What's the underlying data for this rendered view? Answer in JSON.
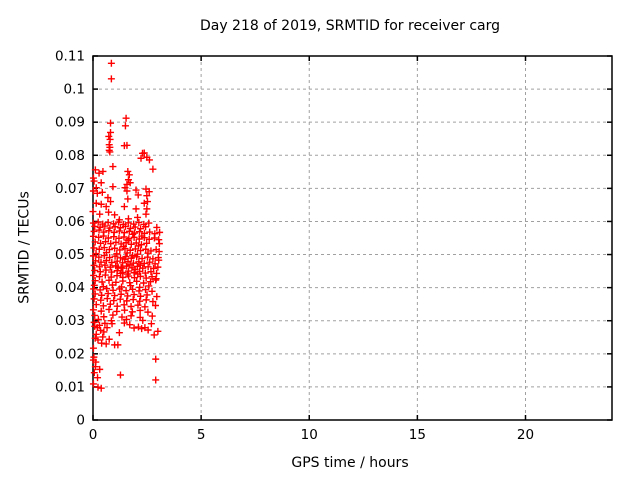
{
  "chart_data": {
    "type": "scatter",
    "title": "Day 218 of 2019, SRMTID for receiver carg",
    "xlabel": "GPS time / hours",
    "ylabel": "SRMTID / TECUs",
    "xlim": [
      0,
      24
    ],
    "ylim": [
      0,
      0.11
    ],
    "x_tick_values": [
      0,
      5,
      10,
      15,
      20
    ],
    "x_tick_labels": [
      "0",
      "5",
      "10",
      "15",
      "20"
    ],
    "y_tick_values": [
      0,
      0.01,
      0.02,
      0.03,
      0.04,
      0.05,
      0.06,
      0.07,
      0.08,
      0.09,
      0.1,
      0.11
    ],
    "y_tick_labels": [
      "0",
      "0.01",
      "0.02",
      "0.03",
      "0.04",
      "0.05",
      "0.06",
      "0.07",
      "0.08",
      "0.09",
      "0.1",
      "0.11"
    ],
    "grid": true,
    "legend": false,
    "marker": "plus",
    "marker_size": 7,
    "marker_color": "#ff0000",
    "grid_color": "#a0a0a0",
    "axis_color": "#000000",
    "points": [
      [
        0.85,
        0.1078
      ],
      [
        0.85,
        0.1031
      ],
      [
        0.81,
        0.0897
      ],
      [
        1.53,
        0.0912
      ],
      [
        1.5,
        0.0889
      ],
      [
        0.81,
        0.0869
      ],
      [
        0.73,
        0.0857
      ],
      [
        0.79,
        0.0848
      ],
      [
        0.75,
        0.0832
      ],
      [
        0.78,
        0.0824
      ],
      [
        1.45,
        0.0829
      ],
      [
        1.57,
        0.083
      ],
      [
        0.75,
        0.0815
      ],
      [
        2.29,
        0.0806
      ],
      [
        0.78,
        0.081
      ],
      [
        2.37,
        0.0807
      ],
      [
        2.22,
        0.0791
      ],
      [
        2.49,
        0.0794
      ],
      [
        2.61,
        0.0786
      ],
      [
        0.11,
        0.0756
      ],
      [
        0.46,
        0.0751
      ],
      [
        0.28,
        0.0746
      ],
      [
        0.92,
        0.0766
      ],
      [
        0.02,
        0.0731
      ],
      [
        0.38,
        0.0717
      ],
      [
        1.61,
        0.0751
      ],
      [
        1.68,
        0.0741
      ],
      [
        1.64,
        0.0726
      ],
      [
        1.57,
        0.0712
      ],
      [
        1.72,
        0.0717
      ],
      [
        2.77,
        0.0758
      ],
      [
        0.15,
        0.0702
      ],
      [
        0.92,
        0.0705
      ],
      [
        1.48,
        0.0702
      ],
      [
        0.05,
        0.0722
      ],
      [
        0.02,
        0.0692
      ],
      [
        0.2,
        0.0685
      ],
      [
        0.43,
        0.0688
      ],
      [
        0.69,
        0.0672
      ],
      [
        0.81,
        0.066
      ],
      [
        1.57,
        0.0692
      ],
      [
        1.99,
        0.0695
      ],
      [
        2.45,
        0.0698
      ],
      [
        2.6,
        0.069
      ],
      [
        2.09,
        0.068
      ],
      [
        2.49,
        0.0678
      ],
      [
        1.61,
        0.0668
      ],
      [
        0.15,
        0.0655
      ],
      [
        0.38,
        0.0652
      ],
      [
        0.61,
        0.0645
      ],
      [
        2.52,
        0.066
      ],
      [
        2.37,
        0.0655
      ],
      [
        1.45,
        0.0645
      ],
      [
        1.99,
        0.0638
      ],
      [
        2.49,
        0.0638
      ],
      [
        0.0,
        0.063
      ],
      [
        0.31,
        0.0622
      ],
      [
        0.72,
        0.0628
      ],
      [
        1.0,
        0.062
      ],
      [
        2.45,
        0.0622
      ],
      [
        2.06,
        0.0612
      ],
      [
        1.64,
        0.0608
      ],
      [
        1.22,
        0.0605
      ],
      [
        0.02,
        0.0595
      ],
      [
        0.24,
        0.0598
      ],
      [
        0.45,
        0.0592
      ],
      [
        0.7,
        0.0597
      ],
      [
        0.95,
        0.0593
      ],
      [
        1.18,
        0.0598
      ],
      [
        1.4,
        0.0591
      ],
      [
        1.63,
        0.0596
      ],
      [
        1.88,
        0.0592
      ],
      [
        2.12,
        0.0597
      ],
      [
        2.35,
        0.0591
      ],
      [
        2.58,
        0.0595
      ],
      [
        0.08,
        0.0585
      ],
      [
        0.33,
        0.0582
      ],
      [
        0.55,
        0.0586
      ],
      [
        0.78,
        0.058
      ],
      [
        1.02,
        0.0584
      ],
      [
        1.27,
        0.0581
      ],
      [
        1.5,
        0.0585
      ],
      [
        1.73,
        0.0579
      ],
      [
        1.95,
        0.0583
      ],
      [
        2.2,
        0.0578
      ],
      [
        2.43,
        0.0584
      ],
      [
        2.95,
        0.0582
      ],
      [
        0.05,
        0.057
      ],
      [
        0.28,
        0.0574
      ],
      [
        0.5,
        0.0568
      ],
      [
        0.73,
        0.0572
      ],
      [
        0.98,
        0.0567
      ],
      [
        1.22,
        0.0571
      ],
      [
        1.45,
        0.0566
      ],
      [
        1.68,
        0.057
      ],
      [
        1.92,
        0.0565
      ],
      [
        2.15,
        0.0569
      ],
      [
        2.38,
        0.0564
      ],
      [
        2.62,
        0.0568
      ],
      [
        2.86,
        0.0563
      ],
      [
        3.08,
        0.0567
      ],
      [
        0.02,
        0.0555
      ],
      [
        0.26,
        0.0552
      ],
      [
        0.48,
        0.0556
      ],
      [
        0.71,
        0.055
      ],
      [
        0.96,
        0.0554
      ],
      [
        1.2,
        0.0549
      ],
      [
        1.43,
        0.0553
      ],
      [
        1.66,
        0.0548
      ],
      [
        1.9,
        0.0552
      ],
      [
        2.14,
        0.0547
      ],
      [
        2.37,
        0.0551
      ],
      [
        2.6,
        0.0546
      ],
      [
        2.84,
        0.055
      ],
      [
        3.04,
        0.0545
      ],
      [
        0.1,
        0.0538
      ],
      [
        0.35,
        0.0534
      ],
      [
        0.58,
        0.0539
      ],
      [
        0.82,
        0.0533
      ],
      [
        1.06,
        0.0537
      ],
      [
        1.3,
        0.0532
      ],
      [
        1.53,
        0.0536
      ],
      [
        1.77,
        0.0531
      ],
      [
        2.0,
        0.0535
      ],
      [
        2.24,
        0.053
      ],
      [
        2.48,
        0.0534
      ],
      [
        3.07,
        0.0533
      ],
      [
        0.04,
        0.052
      ],
      [
        0.29,
        0.0516
      ],
      [
        0.52,
        0.0521
      ],
      [
        0.76,
        0.0515
      ],
      [
        1.0,
        0.0519
      ],
      [
        1.24,
        0.0514
      ],
      [
        1.48,
        0.0518
      ],
      [
        1.72,
        0.0513
      ],
      [
        1.96,
        0.0517
      ],
      [
        2.2,
        0.0512
      ],
      [
        2.44,
        0.0516
      ],
      [
        2.92,
        0.0515
      ],
      [
        3.06,
        0.0509
      ],
      [
        0.14,
        0.0503
      ],
      [
        0.62,
        0.0506
      ],
      [
        1.1,
        0.0502
      ],
      [
        1.58,
        0.0505
      ],
      [
        2.06,
        0.0501
      ],
      [
        2.54,
        0.0504
      ],
      [
        2.68,
        0.0511
      ],
      [
        0.02,
        0.0496
      ],
      [
        0.27,
        0.0492
      ],
      [
        0.52,
        0.0497
      ],
      [
        0.77,
        0.0491
      ],
      [
        1.02,
        0.0495
      ],
      [
        1.27,
        0.049
      ],
      [
        1.52,
        0.0494
      ],
      [
        1.77,
        0.0489
      ],
      [
        2.02,
        0.0493
      ],
      [
        2.27,
        0.0488
      ],
      [
        2.52,
        0.0492
      ],
      [
        2.77,
        0.0487
      ],
      [
        3.02,
        0.0491
      ],
      [
        0.12,
        0.0481
      ],
      [
        0.37,
        0.0477
      ],
      [
        0.62,
        0.0482
      ],
      [
        0.87,
        0.0476
      ],
      [
        1.12,
        0.048
      ],
      [
        1.37,
        0.0475
      ],
      [
        1.62,
        0.0479
      ],
      [
        1.87,
        0.0474
      ],
      [
        2.12,
        0.0478
      ],
      [
        2.37,
        0.0473
      ],
      [
        2.62,
        0.0477
      ],
      [
        2.87,
        0.0472
      ],
      [
        3.04,
        0.0483
      ],
      [
        0.05,
        0.0467
      ],
      [
        0.3,
        0.0463
      ],
      [
        0.55,
        0.0468
      ],
      [
        0.8,
        0.0462
      ],
      [
        1.05,
        0.0466
      ],
      [
        1.3,
        0.0461
      ],
      [
        1.55,
        0.0465
      ],
      [
        1.8,
        0.046
      ],
      [
        2.05,
        0.0464
      ],
      [
        2.3,
        0.0459
      ],
      [
        2.55,
        0.0463
      ],
      [
        2.8,
        0.0458
      ],
      [
        3.0,
        0.0462
      ],
      [
        0.08,
        0.0452
      ],
      [
        0.34,
        0.0448
      ],
      [
        0.6,
        0.0453
      ],
      [
        0.86,
        0.0447
      ],
      [
        1.12,
        0.0451
      ],
      [
        1.38,
        0.0446
      ],
      [
        1.64,
        0.045
      ],
      [
        1.9,
        0.0445
      ],
      [
        2.16,
        0.0449
      ],
      [
        2.42,
        0.0444
      ],
      [
        2.68,
        0.0448
      ],
      [
        2.94,
        0.0443
      ],
      [
        0.03,
        0.0437
      ],
      [
        0.3,
        0.0433
      ],
      [
        0.57,
        0.0438
      ],
      [
        0.84,
        0.0432
      ],
      [
        1.11,
        0.0436
      ],
      [
        1.38,
        0.0431
      ],
      [
        1.65,
        0.0435
      ],
      [
        1.92,
        0.043
      ],
      [
        2.19,
        0.0434
      ],
      [
        2.46,
        0.0429
      ],
      [
        2.73,
        0.0433
      ],
      [
        2.92,
        0.0427
      ],
      [
        0.1,
        0.0421
      ],
      [
        0.42,
        0.0417
      ],
      [
        0.74,
        0.0422
      ],
      [
        1.06,
        0.0416
      ],
      [
        1.38,
        0.042
      ],
      [
        1.7,
        0.0415
      ],
      [
        2.02,
        0.0419
      ],
      [
        2.34,
        0.0414
      ],
      [
        2.66,
        0.0418
      ],
      [
        2.9,
        0.0423
      ],
      [
        0.06,
        0.0407
      ],
      [
        0.48,
        0.0403
      ],
      [
        0.9,
        0.0408
      ],
      [
        1.32,
        0.0402
      ],
      [
        1.74,
        0.0406
      ],
      [
        2.16,
        0.0401
      ],
      [
        2.58,
        0.0405
      ],
      [
        1.35,
        0.0459
      ],
      [
        1.47,
        0.0486
      ],
      [
        1.59,
        0.0441
      ],
      [
        1.71,
        0.0469
      ],
      [
        1.83,
        0.0497
      ],
      [
        1.95,
        0.0455
      ],
      [
        2.07,
        0.0441
      ],
      [
        2.19,
        0.0468
      ],
      [
        1.41,
        0.0524
      ],
      [
        1.62,
        0.0543
      ],
      [
        1.84,
        0.0561
      ],
      [
        2.1,
        0.0526
      ],
      [
        2.26,
        0.0556
      ],
      [
        1.28,
        0.0443
      ],
      [
        1.16,
        0.0462
      ],
      [
        0.03,
        0.0396
      ],
      [
        0.33,
        0.0393
      ],
      [
        0.63,
        0.0397
      ],
      [
        0.93,
        0.0392
      ],
      [
        1.23,
        0.0396
      ],
      [
        1.53,
        0.0391
      ],
      [
        1.83,
        0.0395
      ],
      [
        2.13,
        0.039
      ],
      [
        2.43,
        0.0394
      ],
      [
        2.73,
        0.0389
      ],
      [
        0.1,
        0.0381
      ],
      [
        0.4,
        0.0377
      ],
      [
        0.7,
        0.0382
      ],
      [
        1.0,
        0.0376
      ],
      [
        1.3,
        0.038
      ],
      [
        1.6,
        0.0375
      ],
      [
        1.9,
        0.0379
      ],
      [
        2.2,
        0.0374
      ],
      [
        2.5,
        0.0378
      ],
      [
        2.95,
        0.0373
      ],
      [
        0.05,
        0.0366
      ],
      [
        0.36,
        0.0362
      ],
      [
        0.66,
        0.0367
      ],
      [
        0.96,
        0.0361
      ],
      [
        1.26,
        0.0365
      ],
      [
        1.56,
        0.036
      ],
      [
        1.86,
        0.0364
      ],
      [
        2.16,
        0.0359
      ],
      [
        2.46,
        0.0363
      ],
      [
        2.77,
        0.0358
      ],
      [
        0.15,
        0.0349
      ],
      [
        0.48,
        0.0345
      ],
      [
        0.8,
        0.035
      ],
      [
        1.12,
        0.0344
      ],
      [
        1.44,
        0.0348
      ],
      [
        1.76,
        0.0343
      ],
      [
        2.08,
        0.0347
      ],
      [
        2.4,
        0.0342
      ],
      [
        2.89,
        0.0346
      ],
      [
        0.02,
        0.0333
      ],
      [
        0.38,
        0.0329
      ],
      [
        0.74,
        0.0334
      ],
      [
        1.1,
        0.0328
      ],
      [
        1.46,
        0.0332
      ],
      [
        1.82,
        0.0327
      ],
      [
        2.18,
        0.0331
      ],
      [
        2.54,
        0.0326
      ],
      [
        0.08,
        0.0316
      ],
      [
        0.5,
        0.0312
      ],
      [
        0.92,
        0.0317
      ],
      [
        1.34,
        0.0311
      ],
      [
        1.76,
        0.0315
      ],
      [
        2.18,
        0.031
      ],
      [
        2.74,
        0.0314
      ],
      [
        0.25,
        0.0304
      ],
      [
        0.85,
        0.03
      ],
      [
        1.55,
        0.0304
      ],
      [
        2.3,
        0.0301
      ],
      [
        1.22,
        0.0264
      ],
      [
        2.83,
        0.0257
      ],
      [
        0.23,
        0.0242
      ],
      [
        0.61,
        0.023
      ],
      [
        1.0,
        0.0227
      ],
      [
        1.15,
        0.0227
      ],
      [
        0.02,
        0.0217
      ],
      [
        1.9,
        0.0278
      ],
      [
        2.1,
        0.0281
      ],
      [
        2.25,
        0.0276
      ],
      [
        2.4,
        0.0279
      ],
      [
        2.55,
        0.0272
      ],
      [
        3.0,
        0.0268
      ],
      [
        0.08,
        0.0283
      ],
      [
        0.2,
        0.0279
      ],
      [
        0.35,
        0.0271
      ],
      [
        0.5,
        0.0266
      ],
      [
        0.15,
        0.0259
      ],
      [
        0.45,
        0.0251
      ],
      [
        0.3,
        0.0286
      ],
      [
        0.65,
        0.0279
      ],
      [
        0.75,
        0.0244
      ],
      [
        0.88,
        0.0291
      ],
      [
        1.45,
        0.0293
      ],
      [
        1.7,
        0.0288
      ],
      [
        0.05,
        0.0295
      ],
      [
        0.55,
        0.0292
      ],
      [
        2.7,
        0.0291
      ],
      [
        0.4,
        0.0232
      ],
      [
        0.1,
        0.0247
      ],
      [
        0.02,
        0.0181
      ],
      [
        2.9,
        0.0184
      ],
      [
        0.31,
        0.0153
      ],
      [
        0.11,
        0.0161
      ],
      [
        1.27,
        0.0136
      ],
      [
        2.9,
        0.0121
      ],
      [
        0.02,
        0.0109
      ],
      [
        0.23,
        0.0099
      ],
      [
        0.38,
        0.0096
      ],
      [
        0.13,
        0.0175
      ],
      [
        0.06,
        0.0143
      ],
      [
        0.21,
        0.0128
      ],
      [
        0.04,
        0.019
      ]
    ]
  }
}
